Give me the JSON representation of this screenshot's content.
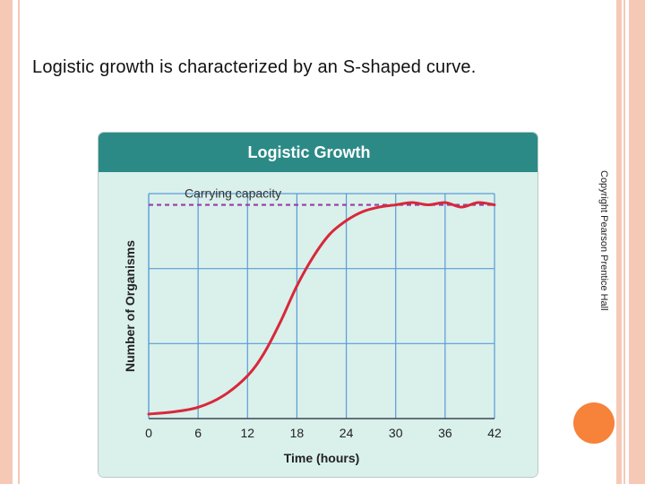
{
  "slide": {
    "title": "Logistic growth is characterized by an S-shaped curve.",
    "copyright": "Copyright Pearson Prentice Hall"
  },
  "colors": {
    "frame": "#f6c9b6",
    "header": "#2b8a86",
    "plot_bg": "#d9f0eb",
    "grid": "#5b9bd5",
    "curve": "#d8283a",
    "capacity_line": "#9b3aa8",
    "accent_dot": "#f7823a"
  },
  "chart_data": {
    "type": "line",
    "title": "Logistic Growth",
    "xlabel": "Time (hours)",
    "ylabel": "Number of Organisms",
    "x_ticks": [
      "0",
      "6",
      "12",
      "18",
      "24",
      "30",
      "36",
      "42"
    ],
    "xlim": [
      0,
      42
    ],
    "ylim": [
      0,
      1
    ],
    "grid": true,
    "annotation": "Carrying capacity",
    "carrying_capacity": 0.95,
    "series": [
      {
        "x": [
          0,
          3,
          6,
          9,
          12,
          14,
          16,
          18,
          20,
          22,
          24,
          26,
          28,
          30,
          32,
          34,
          36,
          38,
          40,
          42
        ],
        "values": [
          0.02,
          0.03,
          0.05,
          0.1,
          0.19,
          0.29,
          0.43,
          0.59,
          0.72,
          0.82,
          0.88,
          0.92,
          0.94,
          0.95,
          0.96,
          0.95,
          0.96,
          0.94,
          0.96,
          0.95
        ]
      }
    ]
  }
}
